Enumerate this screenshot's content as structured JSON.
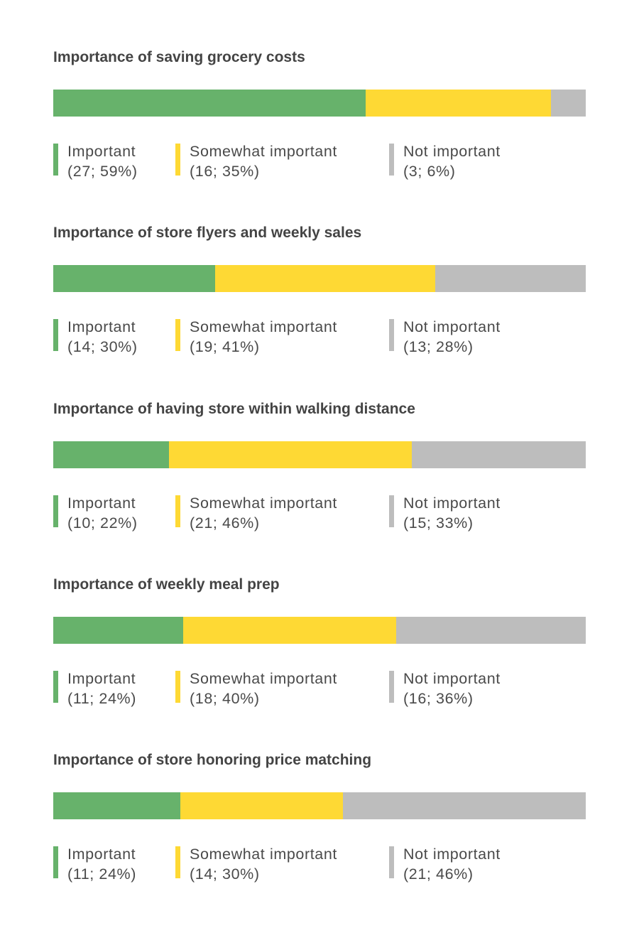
{
  "colors": {
    "important": "#67b26b",
    "somewhat": "#fed934",
    "not": "#bdbdbd"
  },
  "chart_data": [
    {
      "type": "bar",
      "stacked": true,
      "orientation": "horizontal",
      "title": "Importance of saving grocery costs",
      "series": [
        {
          "name": "Important",
          "count": 27,
          "percent": 59,
          "value_label": "(27; 59%)"
        },
        {
          "name": "Somewhat important",
          "count": 16,
          "percent": 35,
          "value_label": "(16; 35%)"
        },
        {
          "name": "Not important",
          "count": 3,
          "percent": 6,
          "value_label": "(3; 6%)"
        }
      ]
    },
    {
      "type": "bar",
      "stacked": true,
      "orientation": "horizontal",
      "title": "Importance of store flyers and weekly sales",
      "series": [
        {
          "name": "Important",
          "count": 14,
          "percent": 30,
          "value_label": "(14; 30%)"
        },
        {
          "name": "Somewhat important",
          "count": 19,
          "percent": 41,
          "value_label": "(19; 41%)"
        },
        {
          "name": "Not important",
          "count": 13,
          "percent": 28,
          "value_label": "(13; 28%)"
        }
      ]
    },
    {
      "type": "bar",
      "stacked": true,
      "orientation": "horizontal",
      "title": "Importance of having store within walking distance",
      "series": [
        {
          "name": "Important",
          "count": 10,
          "percent": 22,
          "value_label": "(10; 22%)"
        },
        {
          "name": "Somewhat important",
          "count": 21,
          "percent": 46,
          "value_label": "(21; 46%)"
        },
        {
          "name": "Not important",
          "count": 15,
          "percent": 33,
          "value_label": "(15; 33%)"
        }
      ]
    },
    {
      "type": "bar",
      "stacked": true,
      "orientation": "horizontal",
      "title": "Importance of weekly meal prep",
      "series": [
        {
          "name": "Important",
          "count": 11,
          "percent": 24,
          "value_label": "(11; 24%)"
        },
        {
          "name": "Somewhat important",
          "count": 18,
          "percent": 40,
          "value_label": "(18; 40%)"
        },
        {
          "name": "Not important",
          "count": 16,
          "percent": 36,
          "value_label": "(16; 36%)"
        }
      ]
    },
    {
      "type": "bar",
      "stacked": true,
      "orientation": "horizontal",
      "title": "Importance of store honoring price matching",
      "series": [
        {
          "name": "Important",
          "count": 11,
          "percent": 24,
          "value_label": "(11; 24%)"
        },
        {
          "name": "Somewhat important",
          "count": 14,
          "percent": 30,
          "value_label": "(14; 30%)"
        },
        {
          "name": "Not important",
          "count": 21,
          "percent": 46,
          "value_label": "(21; 46%)"
        }
      ]
    }
  ]
}
